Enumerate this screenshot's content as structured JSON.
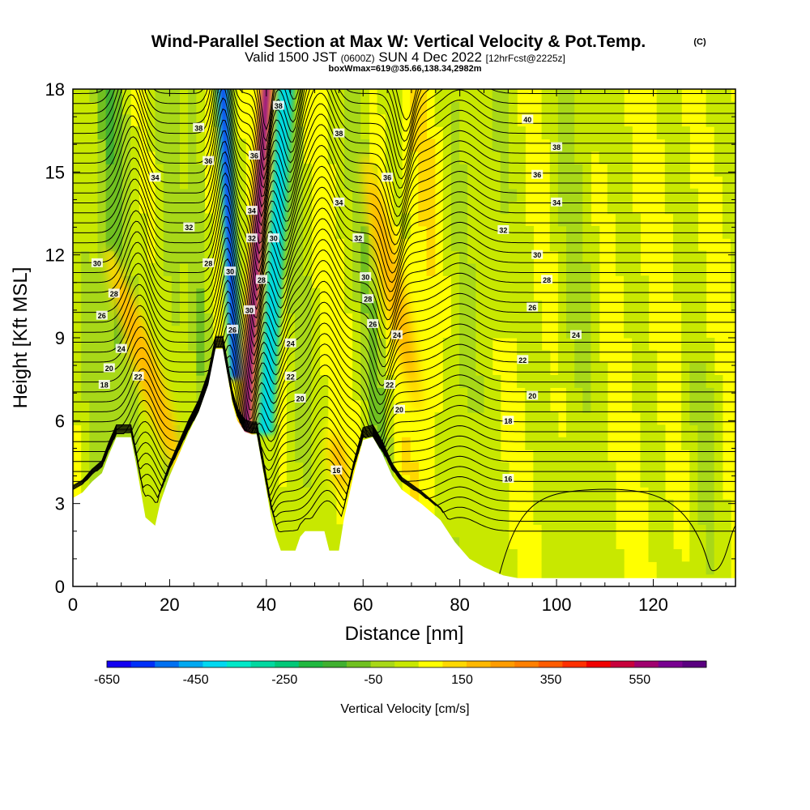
{
  "title": "Wind-Parallel Section at Max W: Vertical Velocity & Pot.Temp.",
  "copyright": "(C)",
  "valid_prefix": "Valid 1500 JST",
  "valid_zulu": "(0600Z)",
  "valid_date": "SUN 4 Dec 2022",
  "forecast": "[12hrFcst@2225z]",
  "box_info": "boxWmax=619@35.66,138.34,2982m",
  "chart_data": {
    "type": "heatmap",
    "xlabel": "Distance [nm]",
    "ylabel": "Height [Kft MSL]",
    "xlim": [
      0,
      137
    ],
    "ylim": [
      0,
      18
    ],
    "x_ticks": [
      "0",
      "20",
      "40",
      "60",
      "80",
      "100",
      "120"
    ],
    "x_tick_values": [
      0,
      20,
      40,
      60,
      80,
      100,
      120
    ],
    "y_ticks": [
      "0",
      "3",
      "6",
      "9",
      "12",
      "15",
      "18"
    ],
    "y_tick_values": [
      0,
      3,
      6,
      9,
      12,
      15,
      18
    ],
    "colorbar": {
      "label": "Vertical Velocity [cm/s]",
      "tick_labels": [
        "-650",
        "-450",
        "-250",
        "-50",
        "150",
        "350",
        "550"
      ],
      "tick_values": [
        -650,
        -450,
        -250,
        -50,
        150,
        350,
        550
      ],
      "min": -650,
      "max": 700,
      "colors": [
        "#1400f0",
        "#0030f8",
        "#0070f0",
        "#00a8f0",
        "#00d8f0",
        "#00e8c8",
        "#00d8a0",
        "#00c878",
        "#20b840",
        "#40b030",
        "#70c020",
        "#a8d818",
        "#c8e800",
        "#ffff00",
        "#ffd800",
        "#ffb800",
        "#ff9c00",
        "#ff8000",
        "#ff5c00",
        "#ff3000",
        "#f00000",
        "#c8003c",
        "#a0006e",
        "#780090",
        "#5a0080"
      ]
    },
    "terrain_kft": [
      [
        0,
        3.2
      ],
      [
        2,
        3.4
      ],
      [
        4,
        3.8
      ],
      [
        6,
        4.1
      ],
      [
        7.5,
        4.8
      ],
      [
        9,
        5.4
      ],
      [
        12,
        5.4
      ],
      [
        13,
        4.5
      ],
      [
        14,
        3.5
      ],
      [
        15,
        2.5
      ],
      [
        17,
        2.2
      ],
      [
        18,
        3.0
      ],
      [
        20,
        4.0
      ],
      [
        22,
        4.8
      ],
      [
        24,
        5.6
      ],
      [
        26,
        6.3
      ],
      [
        28,
        7.3
      ],
      [
        29.5,
        8.6
      ],
      [
        31,
        8.6
      ],
      [
        32,
        7.6
      ],
      [
        33,
        6.6
      ],
      [
        34,
        6.0
      ],
      [
        35.5,
        5.6
      ],
      [
        37,
        5.5
      ],
      [
        38,
        5.5
      ],
      [
        39,
        4.5
      ],
      [
        40,
        3.5
      ],
      [
        41,
        2.5
      ],
      [
        42,
        1.8
      ],
      [
        43,
        1.3
      ],
      [
        46,
        1.3
      ],
      [
        47,
        1.8
      ],
      [
        48,
        2.0
      ],
      [
        52,
        2.0
      ],
      [
        53,
        1.3
      ],
      [
        55,
        1.3
      ],
      [
        56,
        2.4
      ],
      [
        58,
        4.0
      ],
      [
        60,
        5.3
      ],
      [
        62,
        5.4
      ],
      [
        64,
        4.8
      ],
      [
        66,
        4.0
      ],
      [
        68,
        3.5
      ],
      [
        72,
        3.0
      ],
      [
        76,
        2.4
      ],
      [
        79,
        1.6
      ],
      [
        82,
        1.0
      ],
      [
        85,
        0.7
      ],
      [
        89,
        0.4
      ],
      [
        92,
        0.3
      ],
      [
        137,
        0.3
      ]
    ],
    "w_features": [
      {
        "x": 15,
        "z": 8.0,
        "w": 200,
        "kind": "updraft"
      },
      {
        "x": 33,
        "z": 10.0,
        "w": -650,
        "kind": "downdraft"
      },
      {
        "x": 38,
        "z": 12.0,
        "w": 600,
        "kind": "updraft"
      },
      {
        "x": 42,
        "z": 12.0,
        "w": -400,
        "kind": "downdraft"
      },
      {
        "x": 55,
        "z": 4.5,
        "w": 180,
        "kind": "updraft"
      },
      {
        "x": 66,
        "z": 11.0,
        "w": 200,
        "kind": "updraft"
      }
    ],
    "theta_labels": [
      {
        "x": 26,
        "z": 16.6,
        "text": "38"
      },
      {
        "x": 28,
        "z": 15.4,
        "text": "36"
      },
      {
        "x": 17,
        "z": 14.8,
        "text": "34"
      },
      {
        "x": 24,
        "z": 13.0,
        "text": "32"
      },
      {
        "x": 5,
        "z": 11.7,
        "text": "30"
      },
      {
        "x": 28,
        "z": 11.7,
        "text": "28"
      },
      {
        "x": 8.5,
        "z": 10.6,
        "text": "28"
      },
      {
        "x": 6,
        "z": 9.8,
        "text": "26"
      },
      {
        "x": 10,
        "z": 8.6,
        "text": "24"
      },
      {
        "x": 7.5,
        "z": 7.9,
        "text": "20"
      },
      {
        "x": 13.5,
        "z": 7.6,
        "text": "22"
      },
      {
        "x": 6.5,
        "z": 7.3,
        "text": "18"
      },
      {
        "x": 32.5,
        "z": 11.4,
        "text": "30"
      },
      {
        "x": 33,
        "z": 9.3,
        "text": "26"
      },
      {
        "x": 37,
        "z": 13.6,
        "text": "34"
      },
      {
        "x": 37,
        "z": 12.6,
        "text": "32"
      },
      {
        "x": 37.5,
        "z": 15.6,
        "text": "36"
      },
      {
        "x": 42.5,
        "z": 17.4,
        "text": "38"
      },
      {
        "x": 39,
        "z": 11.1,
        "text": "28"
      },
      {
        "x": 41.5,
        "z": 12.6,
        "text": "30"
      },
      {
        "x": 36.5,
        "z": 10.0,
        "text": "30"
      },
      {
        "x": 45,
        "z": 8.8,
        "text": "24"
      },
      {
        "x": 45,
        "z": 7.6,
        "text": "22"
      },
      {
        "x": 47,
        "z": 6.8,
        "text": "20"
      },
      {
        "x": 54.5,
        "z": 4.2,
        "text": "16"
      },
      {
        "x": 55,
        "z": 16.4,
        "text": "38"
      },
      {
        "x": 55,
        "z": 13.9,
        "text": "34"
      },
      {
        "x": 65,
        "z": 14.8,
        "text": "36"
      },
      {
        "x": 59,
        "z": 12.6,
        "text": "32"
      },
      {
        "x": 60.5,
        "z": 11.2,
        "text": "30"
      },
      {
        "x": 61,
        "z": 10.4,
        "text": "28"
      },
      {
        "x": 62,
        "z": 9.5,
        "text": "26"
      },
      {
        "x": 67,
        "z": 9.1,
        "text": "24"
      },
      {
        "x": 65.5,
        "z": 7.3,
        "text": "22"
      },
      {
        "x": 67.5,
        "z": 6.4,
        "text": "20"
      },
      {
        "x": 94,
        "z": 16.9,
        "text": "40"
      },
      {
        "x": 100,
        "z": 15.9,
        "text": "38"
      },
      {
        "x": 96,
        "z": 14.9,
        "text": "36"
      },
      {
        "x": 100,
        "z": 13.9,
        "text": "34"
      },
      {
        "x": 89,
        "z": 12.9,
        "text": "32"
      },
      {
        "x": 96,
        "z": 12.0,
        "text": "30"
      },
      {
        "x": 98,
        "z": 11.1,
        "text": "28"
      },
      {
        "x": 95,
        "z": 10.1,
        "text": "26"
      },
      {
        "x": 104,
        "z": 9.1,
        "text": "24"
      },
      {
        "x": 93,
        "z": 8.2,
        "text": "22"
      },
      {
        "x": 95,
        "z": 6.9,
        "text": "20"
      },
      {
        "x": 90,
        "z": 6.0,
        "text": "18"
      },
      {
        "x": 90,
        "z": 3.9,
        "text": "16"
      }
    ],
    "grid": false,
    "legend": "bottom colorbar"
  }
}
